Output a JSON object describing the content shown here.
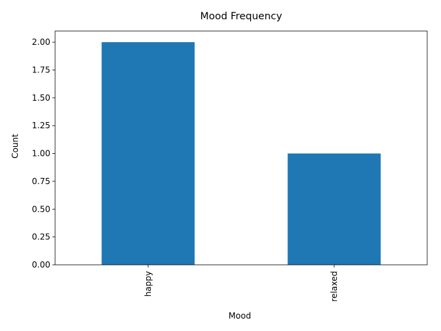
{
  "chart_data": {
    "type": "bar",
    "title": "Mood Frequency",
    "xlabel": "Mood",
    "ylabel": "Count",
    "categories": [
      "happy",
      "relaxed"
    ],
    "values": [
      2,
      1
    ],
    "ylim": [
      0,
      2.1
    ],
    "yticks": [
      "0.00",
      "0.25",
      "0.50",
      "0.75",
      "1.00",
      "1.25",
      "1.50",
      "1.75",
      "2.00"
    ],
    "bar_color": "#1f77b4",
    "grid": false,
    "legend": "none"
  }
}
